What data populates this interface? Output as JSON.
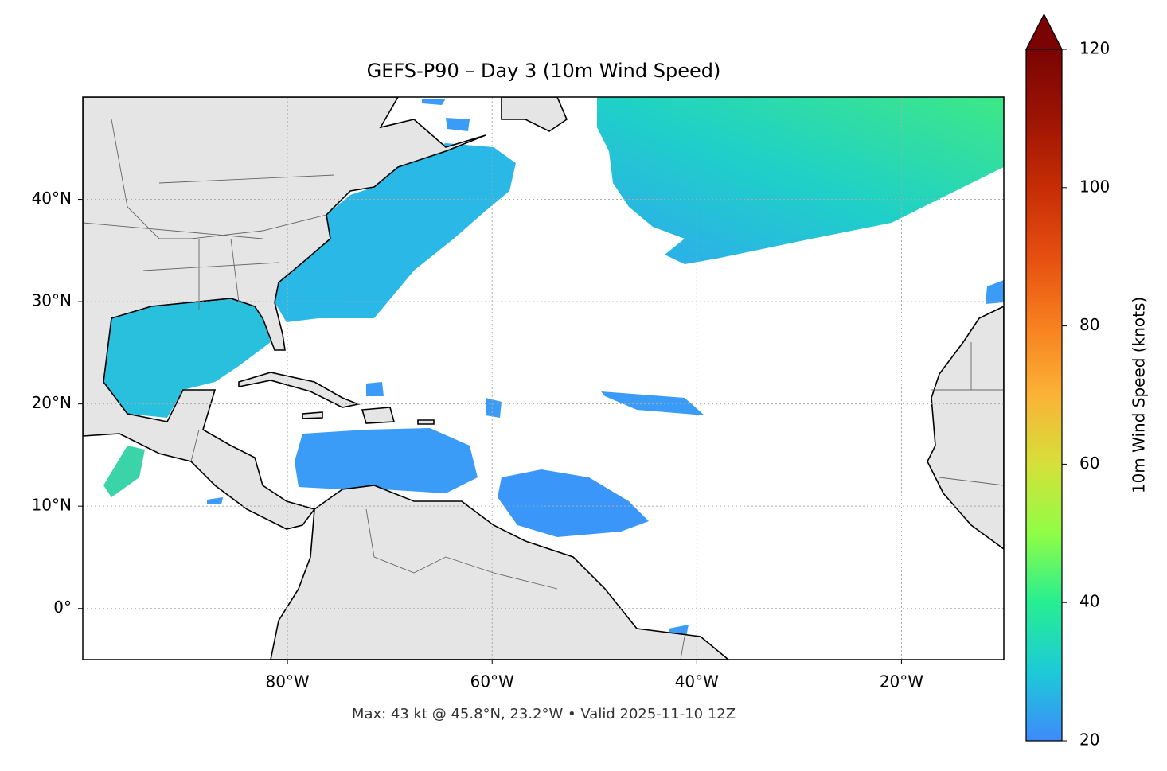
{
  "chart_data": {
    "type": "map",
    "title": "GEFS-P90 – Day 3 (10m Wind Speed)",
    "footnote": "Max: 43 kt @ 45.8°N, 23.2°W • Valid 2025-11-10 12Z",
    "xlim": [
      -100,
      -10
    ],
    "ylim": [
      -5,
      50
    ],
    "xticks": [
      {
        "value": -80,
        "label": "80°W"
      },
      {
        "value": -60,
        "label": "60°W"
      },
      {
        "value": -40,
        "label": "40°W"
      },
      {
        "value": -20,
        "label": "20°W"
      }
    ],
    "yticks": [
      {
        "value": 0,
        "label": "0°"
      },
      {
        "value": 10,
        "label": "10°N"
      },
      {
        "value": 20,
        "label": "20°N"
      },
      {
        "value": 30,
        "label": "30°N"
      },
      {
        "value": 40,
        "label": "40°N"
      }
    ],
    "grid": true,
    "colorbar": {
      "label": "10m Wind Speed (knots)",
      "lim": [
        20,
        120
      ],
      "ticks": [
        20,
        40,
        60,
        80,
        100,
        120
      ],
      "extend": "max",
      "colors": [
        "#3e8afb",
        "#1ccbd7",
        "#27ee92",
        "#90fd45",
        "#d5e03a",
        "#fbb236",
        "#f7801f",
        "#e54f10",
        "#c62d05",
        "#9c1403",
        "#7a0403"
      ]
    }
  }
}
